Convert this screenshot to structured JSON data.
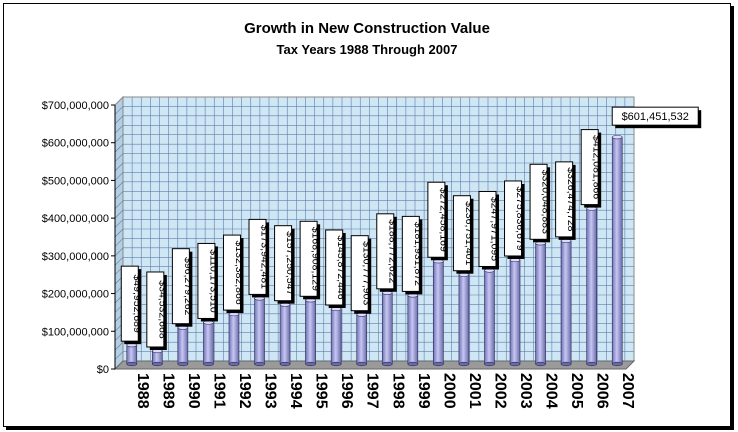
{
  "chart_data": {
    "type": "bar",
    "title": "Growth in New Construction Value",
    "subtitle": "Tax Years 1988 Through 2007",
    "categories": [
      "1988",
      "1989",
      "1990",
      "1991",
      "1992",
      "1993",
      "1994",
      "1995",
      "1996",
      "1997",
      "1998",
      "1999",
      "2000",
      "2001",
      "2002",
      "2003",
      "2004",
      "2005",
      "2006",
      "2007"
    ],
    "values": [
      49952689,
      34532668,
      96279262,
      110173510,
      132382866,
      173942481,
      157250547,
      168908129,
      145872446,
      130777903,
      188772622,
      181931872,
      272458169,
      236751401,
      247971095,
      275836679,
      320048883,
      326474728,
      412081866,
      601451532
    ],
    "data_labels": [
      "$49,952,689",
      "$34,532,668",
      "$96,279,262",
      "$110,173,510",
      "$132,382,866",
      "$173,942,481",
      "$157,250,547",
      "$168,908,129",
      "$145,872,446",
      "$130,777,903",
      "$188,772,622",
      "$181,931,872",
      "$272,458,169",
      "$236,751,401",
      "$247,971,095",
      "$275,836,679",
      "$320,048,883",
      "$326,474,728",
      "$412,081,866",
      "$601,451,532"
    ],
    "y_ticks": [
      "$0",
      "$100,000,000",
      "$200,000,000",
      "$300,000,000",
      "$400,000,000",
      "$500,000,000",
      "$600,000,000",
      "$700,000,000"
    ],
    "ylim": [
      0,
      700000000
    ],
    "grid": true,
    "bar_color": "#a9a9e6",
    "plot_background": "#cfe6f5"
  }
}
